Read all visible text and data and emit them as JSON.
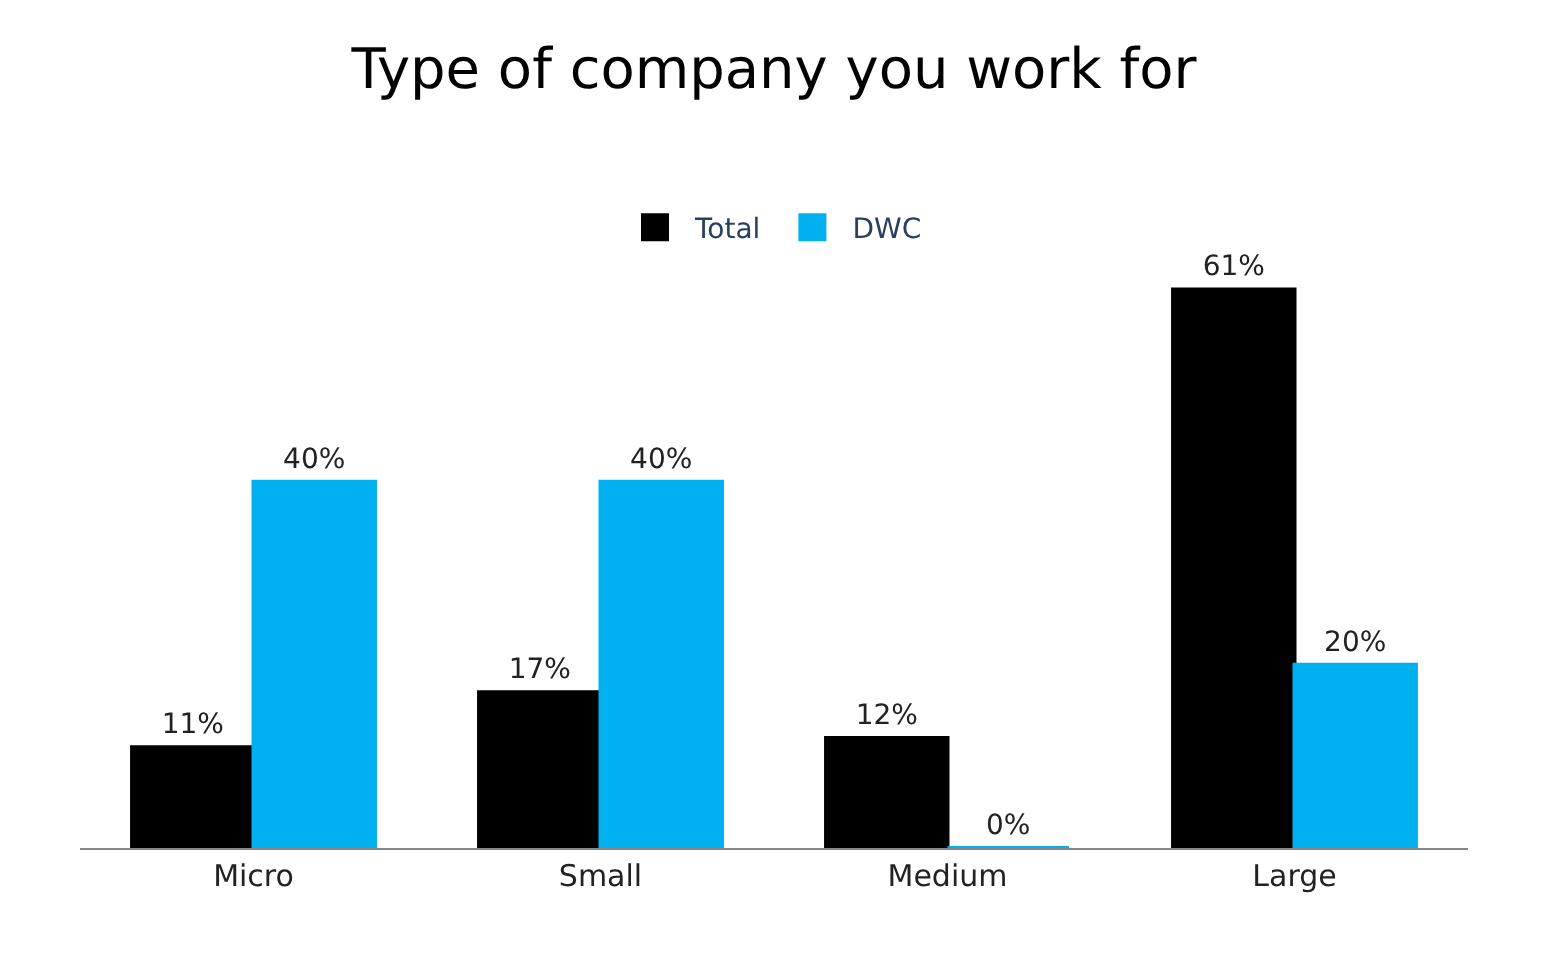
{
  "chart_data": {
    "type": "bar",
    "title": "Type of company you work for",
    "categories": [
      "Micro",
      "Small",
      "Medium",
      "Large"
    ],
    "series": [
      {
        "name": "Total",
        "color": "#000000",
        "values": [
          11,
          17,
          12,
          61
        ],
        "value_labels": [
          "11%",
          "17%",
          "12%",
          "61%"
        ]
      },
      {
        "name": "DWC",
        "color": "#00b0f0",
        "values": [
          40,
          40,
          0,
          20
        ],
        "value_labels": [
          "40%",
          "40%",
          "0%",
          "20%"
        ]
      }
    ],
    "legend": "top"
  }
}
